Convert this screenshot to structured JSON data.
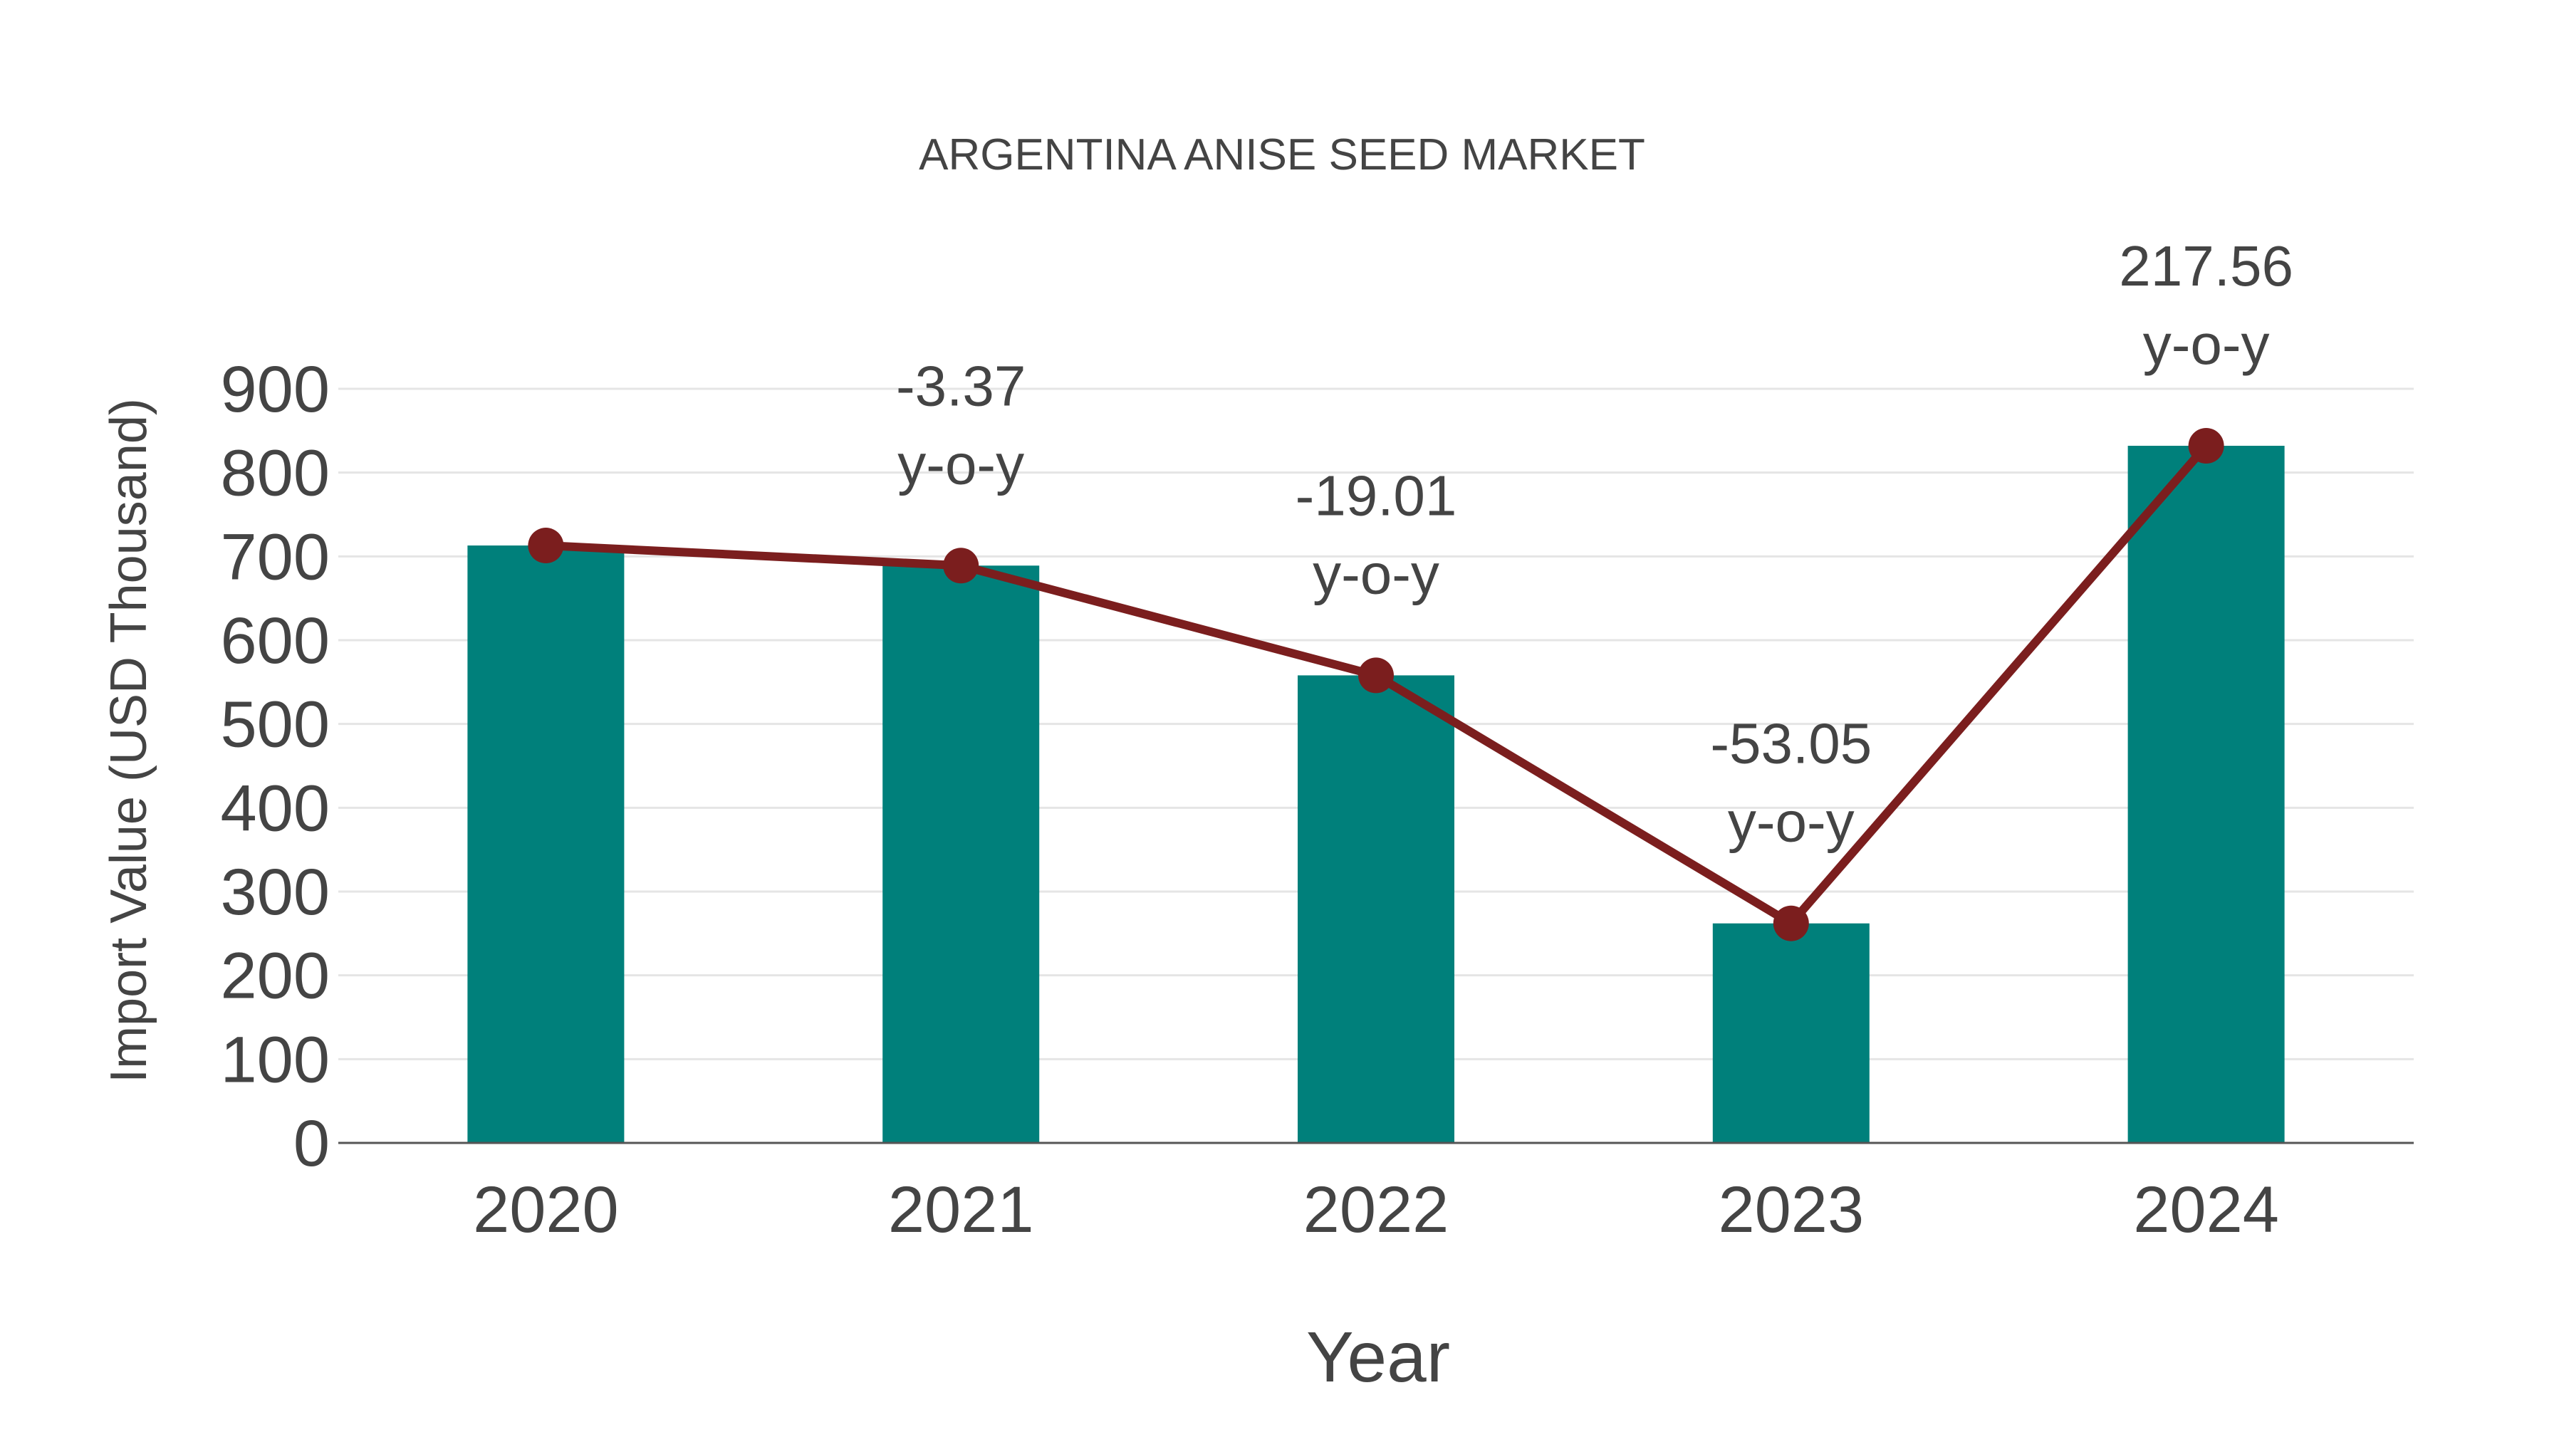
{
  "chart_data": {
    "type": "bar",
    "title": "ARGENTINA ANISE SEED MARKET",
    "xlabel": "Year",
    "ylabel": "Import Value (USD Thousand)",
    "categories": [
      "2020",
      "2021",
      "2022",
      "2023",
      "2024"
    ],
    "series": [
      {
        "name": "Import Value",
        "type": "bar",
        "color": "#00807B",
        "values": [
          713,
          689,
          558,
          262,
          832
        ]
      },
      {
        "name": "Trend",
        "type": "line",
        "color": "#7B1E1E",
        "values": [
          713,
          689,
          558,
          262,
          832
        ]
      }
    ],
    "annotations": [
      {
        "category": "2021",
        "value": "-3.37",
        "suffix": "y-o-y"
      },
      {
        "category": "2022",
        "value": "-19.01",
        "suffix": "y-o-y"
      },
      {
        "category": "2023",
        "value": "-53.05",
        "suffix": "y-o-y"
      },
      {
        "category": "2024",
        "value": "217.56",
        "suffix": "y-o-y"
      }
    ],
    "yticks": [
      0,
      100,
      200,
      300,
      400,
      500,
      600,
      700,
      800,
      900
    ],
    "ylim": [
      0,
      900
    ],
    "grid": true,
    "legend": "none"
  },
  "colors": {
    "bar": "#00807B",
    "line": "#7B1E1E",
    "text": "#444444",
    "grid": "#e5e5e5",
    "axis": "#555555"
  }
}
